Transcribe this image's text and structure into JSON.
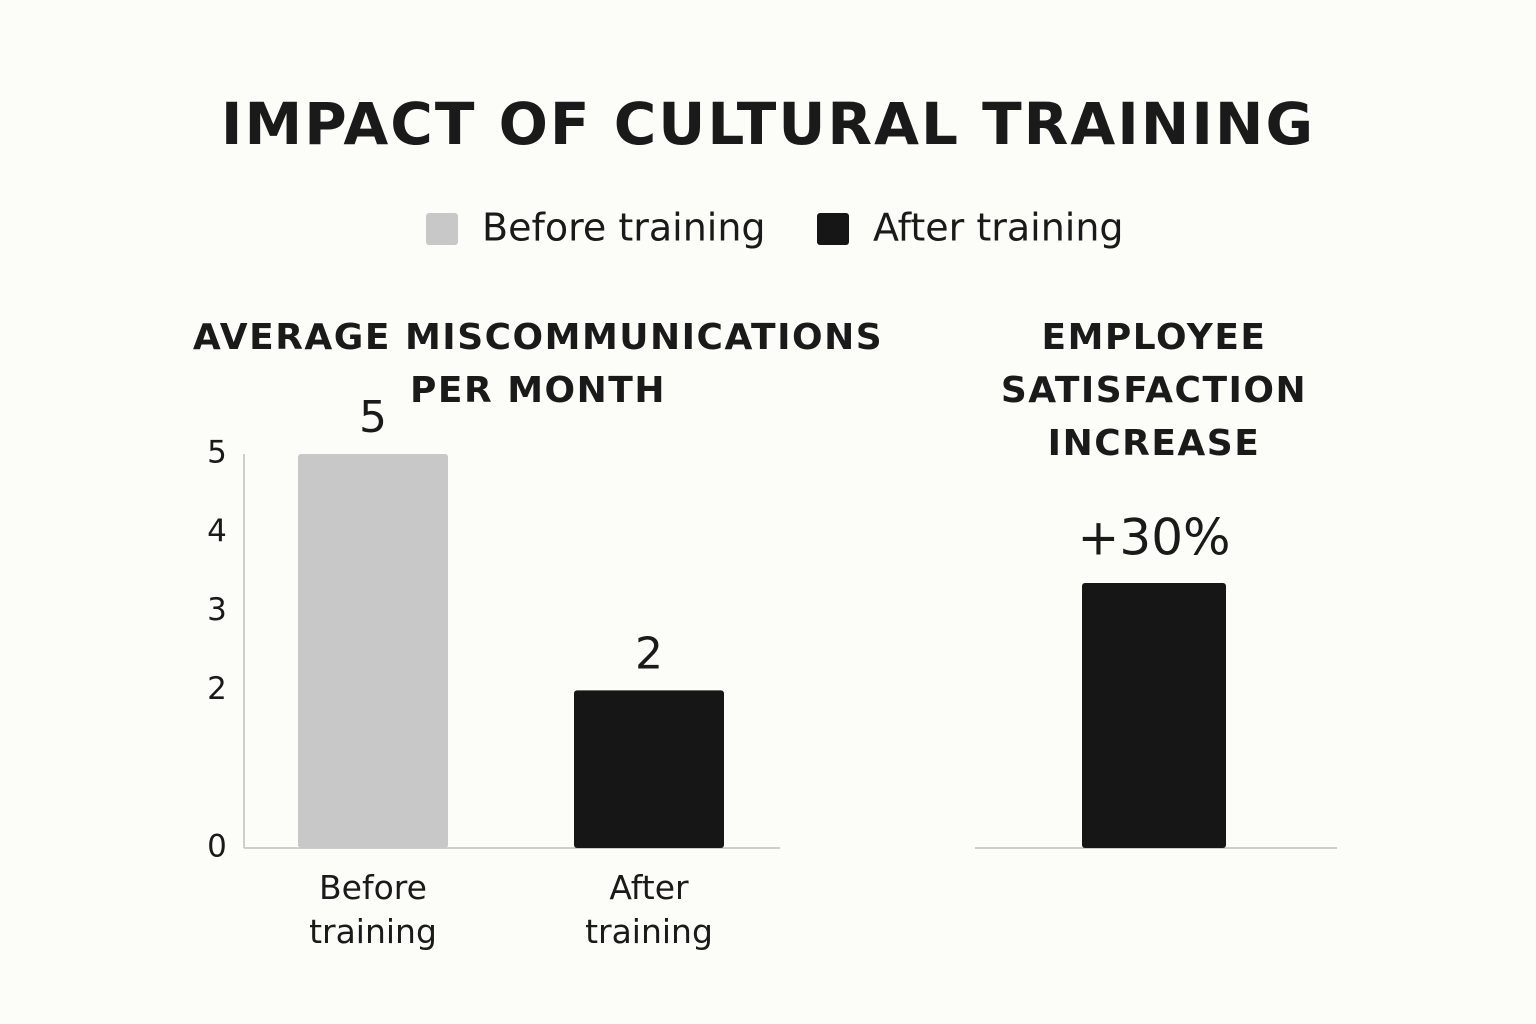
{
  "title": "IMPACT OF CULTURAL TRAINING",
  "chart_data": [
    {
      "type": "bar",
      "title": "AVERAGE MISCOMMUNICATIONS PER MONTH",
      "categories": [
        "Before training",
        "After training"
      ],
      "series": [
        {
          "name": "Before training",
          "color": "#c8c8c8",
          "values": [
            5,
            null
          ]
        },
        {
          "name": "After training",
          "color": "#161616",
          "values": [
            null,
            2
          ]
        }
      ],
      "ylim": [
        0,
        5
      ],
      "yticks": [
        0,
        2,
        3,
        4,
        5
      ],
      "grid": false
    },
    {
      "type": "bar",
      "title": "EMPLOYEE SATISFACTION INCREASE",
      "categories": [
        null
      ],
      "values": [
        30
      ],
      "value_labels": [
        "+30%"
      ],
      "color": "#161616"
    }
  ]
}
